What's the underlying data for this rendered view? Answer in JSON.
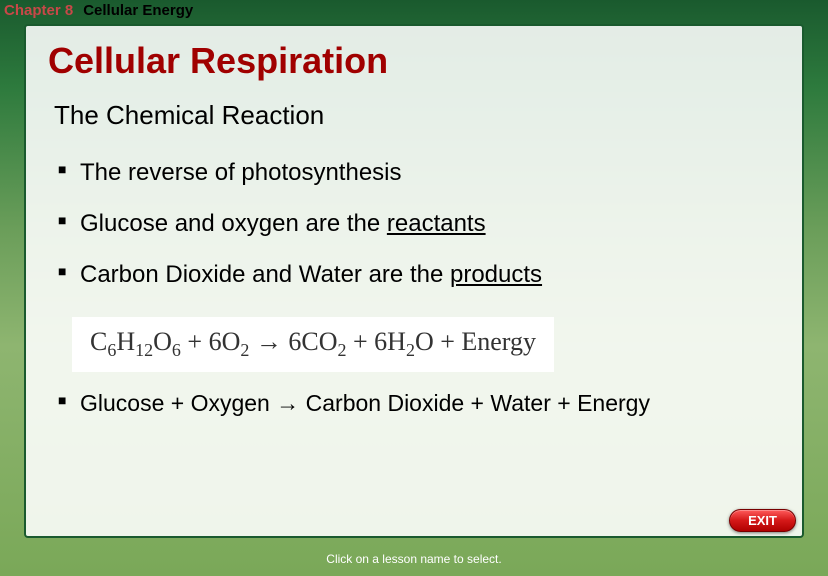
{
  "header": {
    "chapter_label": "Chapter 8",
    "chapter_title": "Cellular Energy"
  },
  "slide": {
    "title": "Cellular Respiration",
    "subtitle": "The Chemical Reaction",
    "bullets": [
      {
        "pre": "The reverse of photosynthesis",
        "under": "",
        "post": ""
      },
      {
        "pre": "Glucose and oxygen are the ",
        "under": "reactants",
        "post": ""
      },
      {
        "pre": "Carbon Dioxide and Water are the ",
        "under": "products",
        "post": ""
      }
    ],
    "equation": {
      "reactant1_base": "C",
      "reactant1_sub1": "6",
      "reactant1_base2": "H",
      "reactant1_sub2": "12",
      "reactant1_base3": "O",
      "reactant1_sub3": "6",
      "plus1": " + 6O",
      "plus1_sub": "2",
      "arrow": " → 6CO",
      "arrow_sub": "2",
      "plus2": " + 6H",
      "plus2_sub": "2",
      "tail": "O + Energy"
    },
    "word_equation": "Glucose + Oxygen → Carbon Dioxide + Water + Energy"
  },
  "exit_label": "EXIT",
  "footer": "Click on a lesson name to select.",
  "colors": {
    "title_color": "#a00000",
    "chapter_color": "#c84848",
    "panel_bg": "rgba(255,255,255,0.88)",
    "panel_border": "#1a5a2e",
    "exit_bg": "#d41818"
  }
}
